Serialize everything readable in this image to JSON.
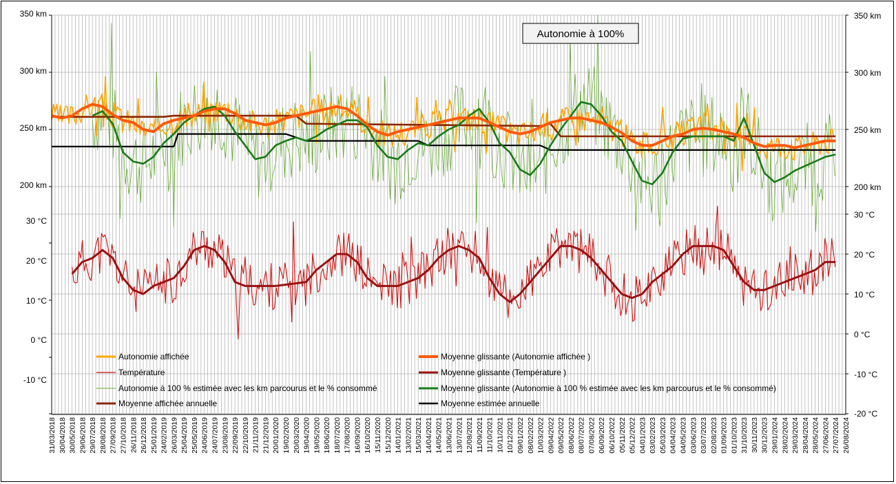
{
  "chart_data": {
    "type": "line",
    "title": "Autonomie à 100%",
    "x_tick_labels": [
      "31/03/2018",
      "30/04/2018",
      "30/05/2018",
      "29/06/2018",
      "29/07/2018",
      "28/08/2018",
      "27/09/2018",
      "27/10/2018",
      "26/11/2018",
      "26/12/2018",
      "25/01/2019",
      "24/02/2019",
      "26/03/2019",
      "25/04/2019",
      "25/05/2019",
      "24/06/2019",
      "24/07/2019",
      "23/08/2019",
      "22/09/2019",
      "22/10/2019",
      "21/11/2019",
      "21/12/2019",
      "20/01/2020",
      "19/02/2020",
      "20/03/2020",
      "19/04/2020",
      "19/05/2020",
      "18/06/2020",
      "18/07/2020",
      "17/08/2020",
      "16/09/2020",
      "16/10/2020",
      "15/11/2020",
      "15/12/2020",
      "14/01/2021",
      "13/02/2021",
      "15/03/2021",
      "14/04/2021",
      "14/05/2021",
      "13/06/2021",
      "13/07/2021",
      "12/08/2021",
      "11/09/2021",
      "11/10/2021",
      "10/11/2021",
      "10/12/2021",
      "09/01/2022",
      "08/02/2022",
      "10/03/2022",
      "09/04/2022",
      "09/05/2022",
      "08/06/2022",
      "08/07/2022",
      "07/08/2022",
      "06/09/2022",
      "06/10/2022",
      "05/11/2022",
      "05/12/2022",
      "04/01/2023",
      "03/02/2023",
      "05/03/2023",
      "04/04/2023",
      "04/05/2023",
      "03/06/2023",
      "03/07/2023",
      "02/08/2023",
      "01/09/2023",
      "01/10/2023",
      "31/10/2023",
      "30/11/2023",
      "30/12/2023",
      "29/01/2024",
      "28/02/2024",
      "29/03/2024",
      "28/04/2024",
      "28/05/2024",
      "27/06/2024",
      "27/07/2024",
      "26/08/2024"
    ],
    "y_left_ticks": [
      "350 km",
      "300 km",
      "250 km",
      "200 km",
      "30 °C",
      "20 °C",
      "10 °C",
      "0 °C",
      "-10 °C"
    ],
    "y_right_ticks": [
      "350 km",
      "300 km",
      "250 km",
      "200 km",
      "30 °C",
      "20 °C",
      "10 °C",
      "0 °C",
      "-10 °C",
      "-20 °C"
    ],
    "autonomy_axis_km": [
      200,
      350
    ],
    "temperature_axis_c": [
      -20,
      30
    ],
    "grid": true,
    "legend_position": "bottom",
    "colors": {
      "autonomie_affichee": "#ffa500",
      "temperature": "#cc1111",
      "autonomie_estimee": "#66aa33",
      "moyenne_affichee_annuelle": "#8b2500",
      "moyenne_glissante_affichee": "#ff5a0a",
      "moyenne_glissante_temperature": "#991111",
      "moyenne_glissante_estimee": "#1a7a1a",
      "moyenne_estimee_annuelle": "#000000"
    },
    "legend": {
      "autonomie_affichee": "Autonomie affichée",
      "temperature": "Température",
      "autonomie_estimee": "Autonomie à 100 % estimée avec les km parcourus et le % consommé",
      "moyenne_affichee_annuelle": "Moyenne affichée  annuelle",
      "moyenne_glissante_affichee": "Moyenne glissante (Autonomie affichée )",
      "moyenne_glissante_temperature": "Moyenne glissante (Température )",
      "moyenne_glissante_estimee": "Moyenne glissante (Autonomie à 100 % estimée avec les km parcourus et le % consommé)",
      "moyenne_estimee_annuelle": "Moyenne estimée annuelle"
    },
    "series": [
      {
        "name": "Moyenne glissante (Autonomie affichée )",
        "unit": "km",
        "points": [
          [
            0,
            262
          ],
          [
            1,
            260
          ],
          [
            2,
            262
          ],
          [
            3,
            268
          ],
          [
            4,
            272
          ],
          [
            5,
            270
          ],
          [
            6,
            263
          ],
          [
            7,
            258
          ],
          [
            8,
            256
          ],
          [
            9,
            250
          ],
          [
            10,
            248
          ],
          [
            11,
            255
          ],
          [
            12,
            258
          ],
          [
            13,
            260
          ],
          [
            14,
            262
          ],
          [
            15,
            266
          ],
          [
            16,
            268
          ],
          [
            17,
            268
          ],
          [
            18,
            264
          ],
          [
            19,
            258
          ],
          [
            20,
            256
          ],
          [
            21,
            254
          ],
          [
            22,
            256
          ],
          [
            23,
            260
          ],
          [
            24,
            262
          ],
          [
            25,
            264
          ],
          [
            26,
            266
          ],
          [
            27,
            268
          ],
          [
            28,
            270
          ],
          [
            29,
            268
          ],
          [
            30,
            262
          ],
          [
            31,
            254
          ],
          [
            32,
            248
          ],
          [
            33,
            245
          ],
          [
            34,
            248
          ],
          [
            35,
            250
          ],
          [
            36,
            252
          ],
          [
            37,
            254
          ],
          [
            38,
            256
          ],
          [
            39,
            258
          ],
          [
            40,
            260
          ],
          [
            41,
            260
          ],
          [
            42,
            260
          ],
          [
            43,
            256
          ],
          [
            44,
            252
          ],
          [
            45,
            248
          ],
          [
            46,
            246
          ],
          [
            47,
            248
          ],
          [
            48,
            252
          ],
          [
            49,
            256
          ],
          [
            50,
            258
          ],
          [
            51,
            260
          ],
          [
            52,
            260
          ],
          [
            53,
            258
          ],
          [
            54,
            256
          ],
          [
            55,
            252
          ],
          [
            56,
            247
          ],
          [
            57,
            240
          ],
          [
            58,
            236
          ],
          [
            59,
            236
          ],
          [
            60,
            240
          ],
          [
            61,
            244
          ],
          [
            62,
            246
          ],
          [
            63,
            250
          ],
          [
            64,
            251
          ],
          [
            65,
            250
          ],
          [
            66,
            248
          ],
          [
            67,
            246
          ],
          [
            68,
            243
          ],
          [
            69,
            238
          ],
          [
            70,
            235
          ],
          [
            71,
            236
          ],
          [
            72,
            236
          ],
          [
            73,
            234
          ],
          [
            74,
            236
          ],
          [
            75,
            238
          ],
          [
            76,
            240
          ],
          [
            77,
            240
          ]
        ]
      },
      {
        "name": "Moyenne glissante (Autonomie à 100 % estimée avec les km parcourus et le % consommé)",
        "unit": "km",
        "points": [
          [
            4,
            262
          ],
          [
            5,
            266
          ],
          [
            6,
            255
          ],
          [
            7,
            230
          ],
          [
            8,
            222
          ],
          [
            9,
            220
          ],
          [
            10,
            226
          ],
          [
            11,
            238
          ],
          [
            12,
            246
          ],
          [
            13,
            256
          ],
          [
            14,
            262
          ],
          [
            15,
            268
          ],
          [
            16,
            270
          ],
          [
            17,
            262
          ],
          [
            18,
            248
          ],
          [
            19,
            236
          ],
          [
            20,
            224
          ],
          [
            21,
            226
          ],
          [
            22,
            236
          ],
          [
            23,
            240
          ],
          [
            24,
            243
          ],
          [
            25,
            240
          ],
          [
            26,
            244
          ],
          [
            27,
            250
          ],
          [
            28,
            254
          ],
          [
            29,
            258
          ],
          [
            30,
            258
          ],
          [
            31,
            252
          ],
          [
            32,
            236
          ],
          [
            33,
            226
          ],
          [
            34,
            224
          ],
          [
            35,
            232
          ],
          [
            36,
            238
          ],
          [
            37,
            236
          ],
          [
            38,
            244
          ],
          [
            39,
            250
          ],
          [
            40,
            254
          ],
          [
            41,
            262
          ],
          [
            42,
            268
          ],
          [
            43,
            256
          ],
          [
            44,
            238
          ],
          [
            45,
            230
          ],
          [
            46,
            215
          ],
          [
            47,
            210
          ],
          [
            48,
            220
          ],
          [
            49,
            236
          ],
          [
            50,
            250
          ],
          [
            51,
            262
          ],
          [
            52,
            274
          ],
          [
            53,
            272
          ],
          [
            54,
            262
          ],
          [
            55,
            248
          ],
          [
            56,
            240
          ],
          [
            57,
            222
          ],
          [
            58,
            205
          ],
          [
            59,
            202
          ],
          [
            60,
            212
          ],
          [
            61,
            230
          ],
          [
            62,
            242
          ],
          [
            63,
            244
          ],
          [
            64,
            244
          ],
          [
            65,
            244
          ],
          [
            66,
            244
          ],
          [
            67,
            240
          ],
          [
            68,
            260
          ],
          [
            69,
            236
          ],
          [
            70,
            212
          ],
          [
            71,
            204
          ],
          [
            72,
            208
          ],
          [
            73,
            214
          ],
          [
            74,
            218
          ],
          [
            75,
            222
          ],
          [
            76,
            226
          ],
          [
            77,
            228
          ]
        ]
      },
      {
        "name": "Moyenne affichée  annuelle",
        "unit": "km",
        "points": [
          [
            0,
            261
          ],
          [
            11,
            261
          ],
          [
            12,
            262
          ],
          [
            24,
            262
          ],
          [
            25,
            255
          ],
          [
            48,
            253
          ],
          [
            49,
            255
          ],
          [
            50,
            244
          ],
          [
            77,
            244
          ]
        ]
      },
      {
        "name": "Moyenne estimée annuelle",
        "unit": "km",
        "points": [
          [
            0,
            235
          ],
          [
            12,
            235
          ],
          [
            12.4,
            246
          ],
          [
            23,
            246
          ],
          [
            25,
            240
          ],
          [
            36,
            240
          ],
          [
            37,
            236
          ],
          [
            48,
            236
          ],
          [
            49,
            232
          ],
          [
            77,
            232
          ]
        ]
      },
      {
        "name": "Moyenne glissante (Température )",
        "unit": "°C",
        "points": [
          [
            2,
            15
          ],
          [
            3,
            18
          ],
          [
            4,
            19
          ],
          [
            5,
            21
          ],
          [
            6,
            19
          ],
          [
            7,
            14
          ],
          [
            8,
            11
          ],
          [
            9,
            10
          ],
          [
            10,
            12
          ],
          [
            11,
            13
          ],
          [
            12,
            14
          ],
          [
            13,
            17
          ],
          [
            14,
            21
          ],
          [
            15,
            22
          ],
          [
            16,
            21
          ],
          [
            17,
            18
          ],
          [
            18,
            13
          ],
          [
            19,
            12
          ],
          [
            21,
            12
          ],
          [
            22,
            12
          ],
          [
            25,
            13
          ],
          [
            26,
            16
          ],
          [
            27,
            18
          ],
          [
            28,
            20
          ],
          [
            29,
            20
          ],
          [
            30,
            18
          ],
          [
            31,
            14
          ],
          [
            32,
            12
          ],
          [
            33,
            12
          ],
          [
            34,
            12
          ],
          [
            35,
            13
          ],
          [
            36,
            14
          ],
          [
            37,
            16
          ],
          [
            38,
            19
          ],
          [
            39,
            21
          ],
          [
            40,
            22
          ],
          [
            41,
            21
          ],
          [
            42,
            19
          ],
          [
            43,
            14
          ],
          [
            44,
            10
          ],
          [
            45,
            8
          ],
          [
            46,
            10
          ],
          [
            47,
            13
          ],
          [
            48,
            16
          ],
          [
            49,
            19
          ],
          [
            50,
            22
          ],
          [
            51,
            22
          ],
          [
            52,
            21
          ],
          [
            53,
            19
          ],
          [
            54,
            16
          ],
          [
            55,
            13
          ],
          [
            56,
            10
          ],
          [
            57,
            9
          ],
          [
            58,
            10
          ],
          [
            59,
            13
          ],
          [
            60,
            15
          ],
          [
            61,
            17
          ],
          [
            62,
            20
          ],
          [
            63,
            22
          ],
          [
            64,
            22
          ],
          [
            65,
            22
          ],
          [
            66,
            21
          ],
          [
            67,
            17
          ],
          [
            68,
            13
          ],
          [
            69,
            11
          ],
          [
            70,
            11
          ],
          [
            71,
            12
          ],
          [
            72,
            13
          ],
          [
            73,
            14
          ],
          [
            74,
            15
          ],
          [
            75,
            16
          ],
          [
            76,
            18
          ],
          [
            77,
            18
          ]
        ]
      }
    ]
  }
}
